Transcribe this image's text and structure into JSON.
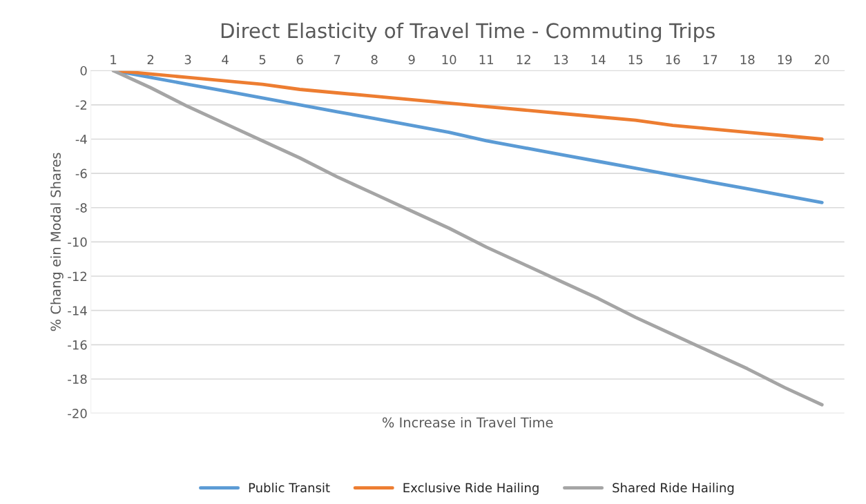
{
  "chart_data": {
    "type": "line",
    "title": "Direct Elasticity of Travel Time - Commuting Trips",
    "xlabel": "% Increase in Travel Time",
    "ylabel": "% Chang ein Modal Shares",
    "categories": [
      "1",
      "2",
      "3",
      "4",
      "5",
      "6",
      "7",
      "8",
      "9",
      "10",
      "11",
      "12",
      "13",
      "14",
      "15",
      "16",
      "17",
      "18",
      "19",
      "20"
    ],
    "series": [
      {
        "name": "Public Transit",
        "color": "#5b9bd5",
        "values": [
          0,
          -0.4,
          -0.8,
          -1.2,
          -1.6,
          -2.0,
          -2.4,
          -2.8,
          -3.2,
          -3.6,
          -4.1,
          -4.5,
          -4.9,
          -5.3,
          -5.7,
          -6.1,
          -6.5,
          -6.9,
          -7.3,
          -7.7
        ]
      },
      {
        "name": "Exclusive Ride Hailing",
        "color": "#ed7d31",
        "values": [
          0,
          -0.2,
          -0.4,
          -0.6,
          -0.8,
          -1.1,
          -1.3,
          -1.5,
          -1.7,
          -1.9,
          -2.1,
          -2.3,
          -2.5,
          -2.7,
          -2.9,
          -3.2,
          -3.4,
          -3.6,
          -3.8,
          -4.0
        ]
      },
      {
        "name": "Shared Ride Hailing",
        "color": "#a5a5a5",
        "values": [
          0,
          -1.0,
          -2.1,
          -3.1,
          -4.1,
          -5.1,
          -6.2,
          -7.2,
          -8.2,
          -9.2,
          -10.3,
          -11.3,
          -12.3,
          -13.3,
          -14.4,
          -15.4,
          -16.4,
          -17.4,
          -18.5,
          -19.5
        ]
      }
    ],
    "ylim": [
      -20,
      0
    ],
    "yticks": [
      -20,
      -18,
      -16,
      -14,
      -12,
      -10,
      -8,
      -6,
      -4,
      -2,
      0
    ],
    "grid": "y",
    "legend": "bottom",
    "marker": "none",
    "line_style": "solid"
  }
}
